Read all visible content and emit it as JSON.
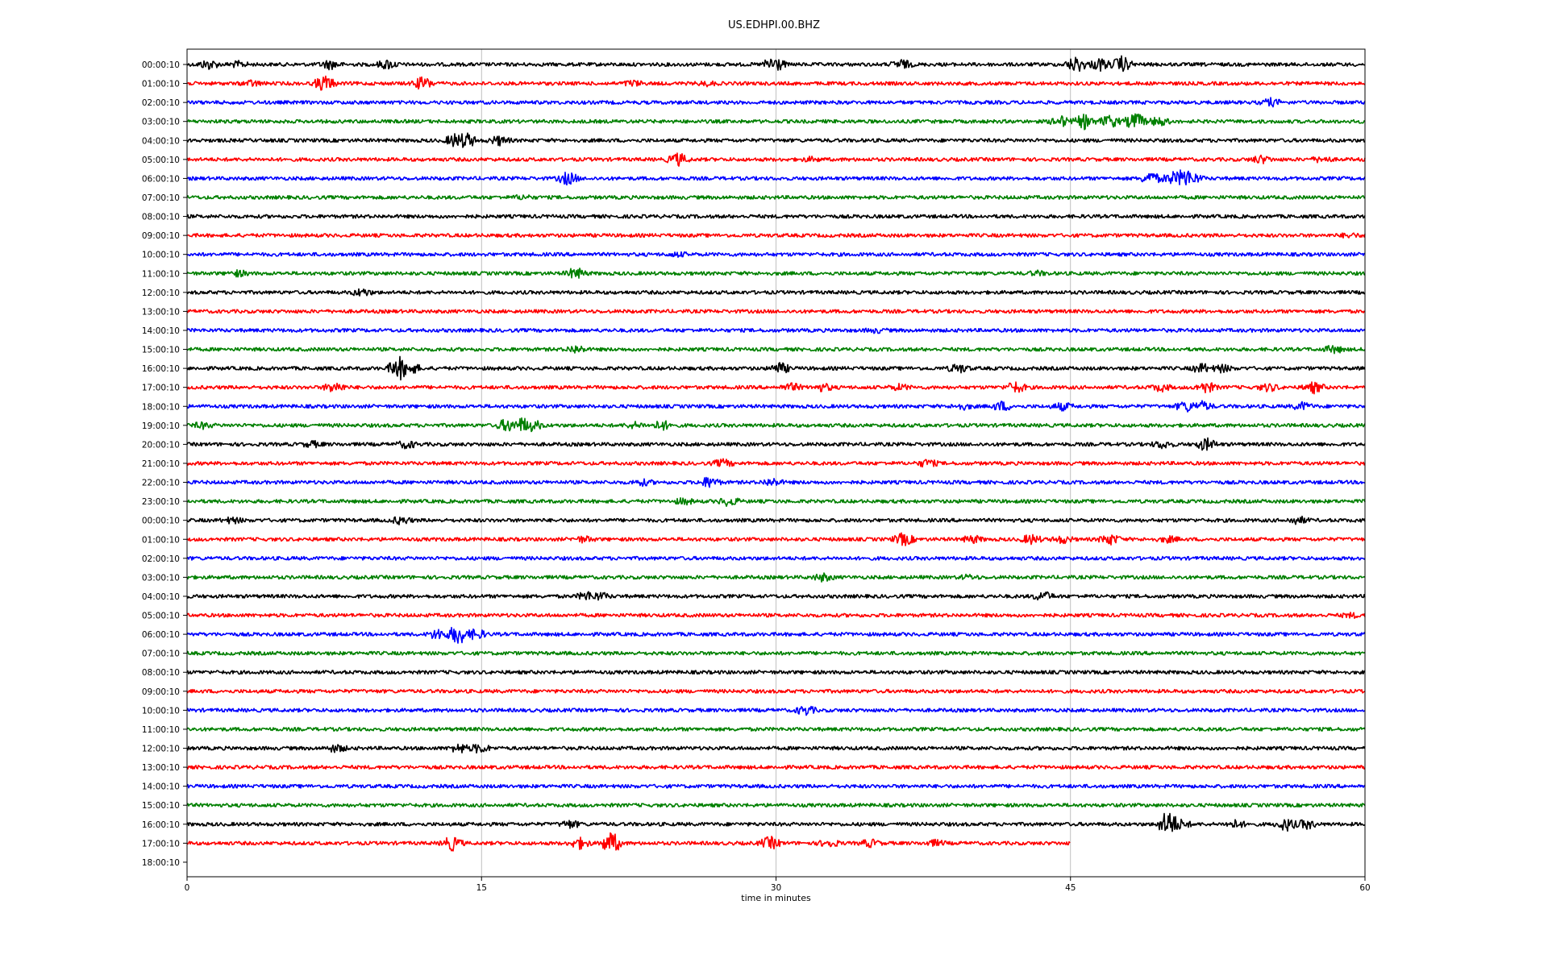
{
  "chart_data": {
    "type": "line",
    "title": "US.EDHPI.00.BHZ",
    "xlabel": "time in minutes",
    "ylabel": "",
    "xlim": [
      0,
      60
    ],
    "xticks": [
      0,
      15,
      30,
      45,
      60
    ],
    "grid": "vertical lines at x ticks",
    "palette": [
      "#000000",
      "#ff0000",
      "#0000ff",
      "#008000"
    ],
    "row_labels": [
      "00:00:10",
      "01:00:10",
      "02:00:10",
      "03:00:10",
      "04:00:10",
      "05:00:10",
      "06:00:10",
      "07:00:10",
      "08:00:10",
      "09:00:10",
      "10:00:10",
      "11:00:10",
      "12:00:10",
      "13:00:10",
      "14:00:10",
      "15:00:10",
      "16:00:10",
      "17:00:10",
      "18:00:10",
      "19:00:10",
      "20:00:10",
      "21:00:10",
      "22:00:10",
      "23:00:10",
      "00:00:10",
      "01:00:10",
      "02:00:10",
      "03:00:10",
      "04:00:10",
      "05:00:10",
      "06:00:10",
      "07:00:10",
      "08:00:10",
      "09:00:10",
      "10:00:10",
      "11:00:10",
      "12:00:10",
      "13:00:10",
      "14:00:10",
      "15:00:10",
      "16:00:10",
      "17:00:10",
      "18:00:10"
    ],
    "traces": [
      {
        "events": [
          [
            1.1,
            5
          ],
          [
            2.6,
            3
          ],
          [
            7.3,
            5
          ],
          [
            10.2,
            5
          ],
          [
            29.9,
            10
          ],
          [
            36.4,
            5
          ],
          [
            45.3,
            9
          ],
          [
            46.5,
            7
          ],
          [
            47.6,
            9
          ]
        ]
      },
      {
        "events": [
          [
            3.3,
            3
          ],
          [
            7,
            9
          ],
          [
            12,
            7
          ],
          [
            22.7,
            3
          ],
          [
            26.5,
            2
          ]
        ]
      },
      {
        "events": [
          [
            55.2,
            4
          ]
        ]
      },
      {
        "events": [
          [
            44.5,
            6
          ],
          [
            45.7,
            8
          ],
          [
            47,
            7
          ],
          [
            48.3,
            10
          ],
          [
            49.5,
            5
          ]
        ]
      },
      {
        "events": [
          [
            13.7,
            8
          ],
          [
            14.2,
            9
          ],
          [
            15.9,
            5
          ]
        ]
      },
      {
        "events": [
          [
            25,
            7
          ],
          [
            31.8,
            2
          ],
          [
            54.7,
            4
          ],
          [
            57.8,
            3
          ]
        ]
      },
      {
        "events": [
          [
            19.4,
            7
          ],
          [
            49.1,
            7
          ],
          [
            50.2,
            7
          ],
          [
            50.8,
            12
          ],
          [
            51.2,
            6
          ]
        ]
      },
      {
        "events": [
          [
            17.1,
            2
          ]
        ]
      },
      {
        "events": []
      },
      {
        "events": [
          [
            59.2,
            2
          ]
        ]
      },
      {
        "events": [
          [
            25,
            2
          ]
        ]
      },
      {
        "events": [
          [
            2.6,
            3
          ],
          [
            19.8,
            6
          ],
          [
            43.3,
            2
          ]
        ]
      },
      {
        "events": [
          [
            8.9,
            4
          ]
        ]
      },
      {
        "events": []
      },
      {
        "events": [
          [
            35.1,
            2
          ]
        ]
      },
      {
        "events": [
          [
            19.8,
            4
          ],
          [
            58.4,
            4
          ]
        ]
      },
      {
        "events": [
          [
            10.8,
            14
          ],
          [
            11.4,
            6
          ],
          [
            30.2,
            6
          ],
          [
            39.3,
            5
          ],
          [
            51.7,
            5
          ],
          [
            52.7,
            4
          ]
        ]
      },
      {
        "events": [
          [
            7.5,
            6
          ],
          [
            30.8,
            4
          ],
          [
            32.4,
            4
          ],
          [
            36.3,
            3
          ],
          [
            42.2,
            6
          ],
          [
            49.6,
            4
          ],
          [
            51.9,
            6
          ],
          [
            55.1,
            4
          ],
          [
            57.4,
            6
          ]
        ]
      },
      {
        "events": [
          [
            39.5,
            3
          ],
          [
            41.5,
            5
          ],
          [
            44.6,
            4
          ],
          [
            50.9,
            6
          ],
          [
            51.7,
            5
          ],
          [
            56.8,
            4
          ]
        ]
      },
      {
        "events": [
          [
            0.8,
            3
          ],
          [
            16.3,
            7
          ],
          [
            17.1,
            9
          ],
          [
            17.6,
            6
          ],
          [
            22.8,
            3
          ],
          [
            24.2,
            5
          ]
        ]
      },
      {
        "events": [
          [
            6.4,
            3
          ],
          [
            11.2,
            4
          ],
          [
            49.7,
            4
          ],
          [
            51.9,
            7
          ]
        ]
      },
      {
        "events": [
          [
            27.3,
            4
          ],
          [
            37.7,
            4
          ]
        ]
      },
      {
        "events": [
          [
            23.2,
            3
          ],
          [
            26.6,
            6
          ],
          [
            29.8,
            4
          ]
        ]
      },
      {
        "events": [
          [
            25.3,
            3
          ],
          [
            27.6,
            5
          ]
        ]
      },
      {
        "events": [
          [
            2.3,
            3
          ],
          [
            10.9,
            4
          ],
          [
            56.6,
            4
          ]
        ]
      },
      {
        "events": [
          [
            20.2,
            3
          ],
          [
            36.5,
            7
          ],
          [
            40,
            4
          ],
          [
            43,
            5
          ],
          [
            44.6,
            4
          ],
          [
            47,
            6
          ],
          [
            50,
            3
          ]
        ]
      },
      {
        "events": []
      },
      {
        "events": [
          [
            32.4,
            4
          ],
          [
            39.8,
            2
          ]
        ]
      },
      {
        "events": [
          [
            20.4,
            5
          ],
          [
            21,
            4
          ],
          [
            43.6,
            5
          ]
        ]
      },
      {
        "events": [
          [
            59.3,
            2
          ]
        ]
      },
      {
        "events": [
          [
            12.8,
            6
          ],
          [
            13.8,
            12
          ],
          [
            14.7,
            6
          ]
        ]
      },
      {
        "events": []
      },
      {
        "events": []
      },
      {
        "events": []
      },
      {
        "events": [
          [
            31.5,
            5
          ]
        ]
      },
      {
        "events": []
      },
      {
        "events": [
          [
            7.6,
            4
          ],
          [
            13.9,
            5
          ],
          [
            14.9,
            5
          ]
        ]
      },
      {
        "events": []
      },
      {
        "events": []
      },
      {
        "events": []
      },
      {
        "events": [
          [
            19.5,
            4
          ],
          [
            50,
            17
          ],
          [
            50.6,
            5
          ],
          [
            53.4,
            4
          ],
          [
            56,
            7
          ],
          [
            57,
            5
          ]
        ]
      },
      {
        "events": [
          [
            13.5,
            8
          ],
          [
            20,
            6
          ],
          [
            21.6,
            13
          ],
          [
            29.7,
            7
          ],
          [
            32.7,
            4
          ],
          [
            34.8,
            4
          ],
          [
            38.1,
            3
          ],
          [
            45,
            0
          ]
        ],
        "end_minute": 45
      },
      {
        "events": [],
        "end_minute": 0
      }
    ]
  }
}
